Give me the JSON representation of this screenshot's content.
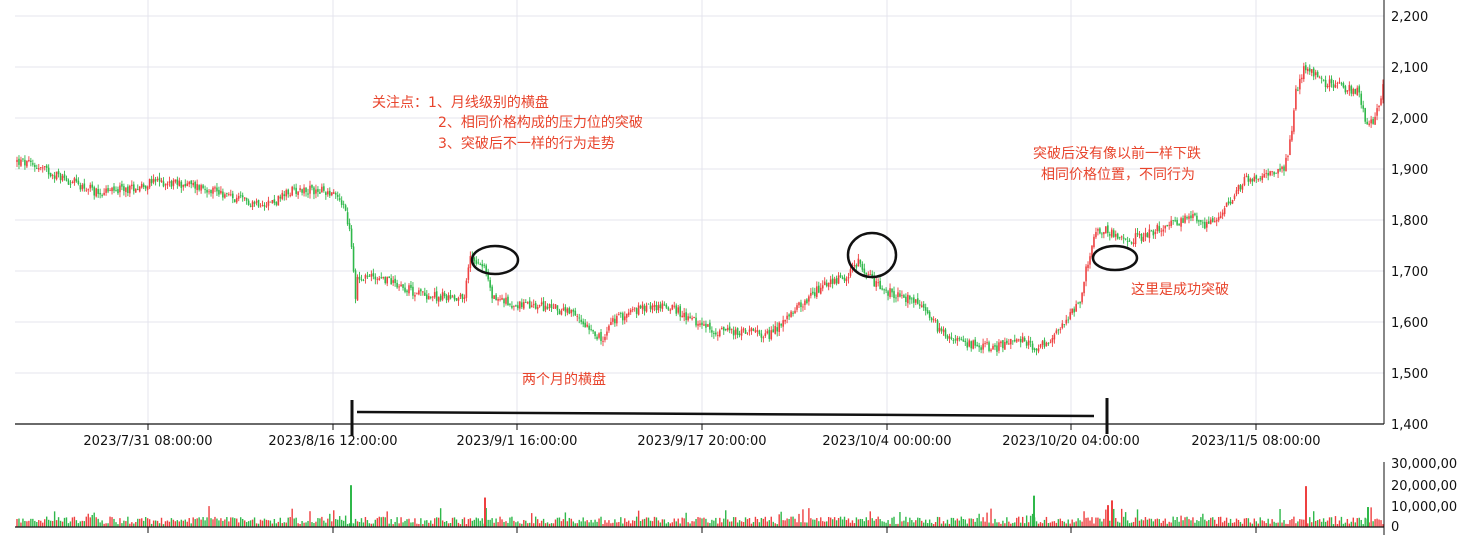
{
  "chart_data": {
    "type": "candlestick",
    "x_ticks": [
      "2023/7/31 08:00:00",
      "2023/8/16 12:00:00",
      "2023/9/1 16:00:00",
      "2023/9/17 20:00:00",
      "2023/10/4 00:00:00",
      "2023/10/20 04:00:00",
      "2023/11/5 08:00:00"
    ],
    "price_axis": {
      "ylim": [
        1400,
        2200
      ],
      "ticks": [
        "2,200",
        "2,100",
        "2,000",
        "1,900",
        "1,800",
        "1,700",
        "1,600",
        "1,500",
        "1,400"
      ]
    },
    "volume_axis": {
      "ylim": [
        0,
        30000
      ],
      "ticks": [
        "30,000,00",
        "20,000,00",
        "10,000,00",
        "0"
      ]
    },
    "colors": {
      "up": "#ee4040",
      "down": "#2fb84a",
      "grid": "#e4e4ee",
      "annotation": "#e8442c",
      "axis": "#111111"
    },
    "close_path": [
      [
        0,
        1915
      ],
      [
        10,
        1905
      ],
      [
        25,
        1880
      ],
      [
        40,
        1855
      ],
      [
        55,
        1860
      ],
      [
        70,
        1875
      ],
      [
        85,
        1870
      ],
      [
        100,
        1860
      ],
      [
        110,
        1840
      ],
      [
        120,
        1835
      ],
      [
        130,
        1835
      ],
      [
        140,
        1860
      ],
      [
        150,
        1858
      ],
      [
        160,
        1855
      ],
      [
        165,
        1830
      ],
      [
        168,
        1780
      ],
      [
        170,
        1700
      ],
      [
        171,
        1650
      ],
      [
        172,
        1690
      ],
      [
        180,
        1690
      ],
      [
        190,
        1680
      ],
      [
        200,
        1660
      ],
      [
        210,
        1650
      ],
      [
        220,
        1650
      ],
      [
        226,
        1650
      ],
      [
        229,
        1730
      ],
      [
        233,
        1720
      ],
      [
        236,
        1710
      ],
      [
        240,
        1650
      ],
      [
        250,
        1635
      ],
      [
        260,
        1630
      ],
      [
        270,
        1630
      ],
      [
        280,
        1615
      ],
      [
        290,
        1590
      ],
      [
        296,
        1560
      ],
      [
        300,
        1600
      ],
      [
        310,
        1620
      ],
      [
        320,
        1630
      ],
      [
        330,
        1630
      ],
      [
        340,
        1605
      ],
      [
        350,
        1585
      ],
      [
        360,
        1580
      ],
      [
        370,
        1580
      ],
      [
        380,
        1575
      ],
      [
        390,
        1610
      ],
      [
        400,
        1650
      ],
      [
        410,
        1680
      ],
      [
        420,
        1690
      ],
      [
        425,
        1720
      ],
      [
        428,
        1700
      ],
      [
        435,
        1670
      ],
      [
        445,
        1650
      ],
      [
        455,
        1640
      ],
      [
        465,
        1590
      ],
      [
        475,
        1560
      ],
      [
        485,
        1555
      ],
      [
        495,
        1550
      ],
      [
        505,
        1570
      ],
      [
        515,
        1550
      ],
      [
        520,
        1560
      ],
      [
        530,
        1600
      ],
      [
        537,
        1640
      ],
      [
        540,
        1700
      ],
      [
        545,
        1780
      ],
      [
        550,
        1780
      ],
      [
        560,
        1760
      ],
      [
        570,
        1770
      ],
      [
        580,
        1790
      ],
      [
        590,
        1800
      ],
      [
        595,
        1810
      ],
      [
        600,
        1790
      ],
      [
        610,
        1820
      ],
      [
        620,
        1880
      ],
      [
        630,
        1890
      ],
      [
        640,
        1900
      ],
      [
        643,
        1950
      ],
      [
        646,
        2050
      ],
      [
        650,
        2100
      ],
      [
        660,
        2070
      ],
      [
        670,
        2060
      ],
      [
        678,
        2050
      ],
      [
        682,
        1980
      ],
      [
        686,
        2000
      ],
      [
        690,
        2060
      ]
    ],
    "annotations": [
      {
        "text": "关注点：1、月线级别的横盘"
      },
      {
        "text": "2、相同价格构成的压力位的突破"
      },
      {
        "text": "3、突破后不一样的行为走势"
      },
      {
        "text": "突破后没有像以前一样下跌"
      },
      {
        "text": "相同价格位置，不同行为"
      },
      {
        "text": "这里是成功突破"
      },
      {
        "text": "两个月的横盘"
      }
    ]
  }
}
